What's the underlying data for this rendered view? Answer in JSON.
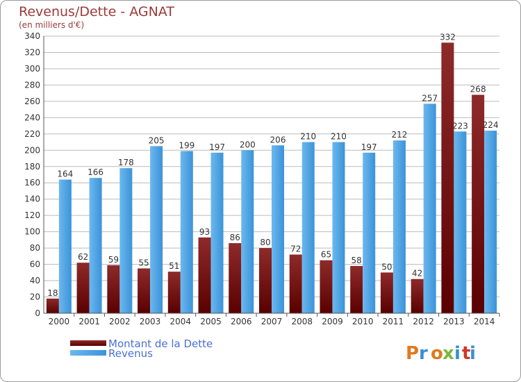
{
  "header": {
    "title": "Revenus/Dette - AGNAT",
    "subtitle": "(en milliers d'€)"
  },
  "brand": {
    "logo_text": "Proxiti"
  },
  "colors": {
    "dette": "#7a1515",
    "revenus": "#4aa3e6",
    "grid": "#bbbbbb",
    "text": "#333333"
  },
  "chart_data": {
    "type": "bar",
    "categories": [
      "2000",
      "2001",
      "2002",
      "2003",
      "2004",
      "2005",
      "2006",
      "2007",
      "2008",
      "2009",
      "2010",
      "2011",
      "2012",
      "2013",
      "2014"
    ],
    "series": [
      {
        "name": "Montant de la Dette",
        "values": [
          18,
          62,
          59,
          55,
          51,
          93,
          86,
          80,
          72,
          65,
          58,
          50,
          42,
          332,
          268
        ]
      },
      {
        "name": "Revenus",
        "values": [
          164,
          166,
          178,
          205,
          199,
          197,
          200,
          206,
          210,
          210,
          197,
          212,
          257,
          223,
          224
        ]
      }
    ],
    "yticks": [
      0,
      20,
      40,
      60,
      80,
      100,
      120,
      140,
      160,
      180,
      200,
      220,
      240,
      260,
      280,
      300,
      320,
      340
    ],
    "ylim": [
      0,
      340
    ],
    "grid": true,
    "legend": "bottom-left"
  }
}
